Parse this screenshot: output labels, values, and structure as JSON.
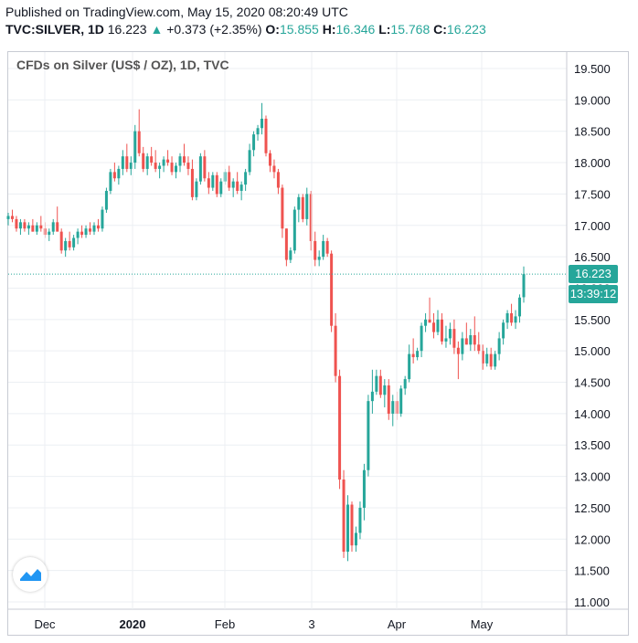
{
  "header": {
    "published": "Published on TradingView.com, May 15, 2020 08:20:49 UTC",
    "symbol": "TVC:SILVER, 1D",
    "last": "16.223",
    "change": "+0.373 (+2.35%)",
    "o_label": "O:",
    "o": "15.855",
    "h_label": "H:",
    "h": "16.346",
    "l_label": "L:",
    "l": "15.768",
    "c_label": "C:",
    "c": "16.223"
  },
  "colors": {
    "up": "#26a69a",
    "down": "#ef5350",
    "grid": "#eceff3",
    "axis_text": "#131722"
  },
  "price_tag": "16.223",
  "countdown_tag": "13:39:12",
  "chart_data": {
    "type": "candlestick",
    "title": "CFDs on Silver (US$ / OZ), 1D, TVC",
    "ylim": [
      11.0,
      19.5
    ],
    "yticks": [
      "19.500",
      "19.000",
      "18.500",
      "18.000",
      "17.500",
      "17.000",
      "16.500",
      "16.000",
      "15.500",
      "15.000",
      "14.500",
      "14.000",
      "13.500",
      "13.000",
      "12.500",
      "12.000",
      "11.500",
      "11.000"
    ],
    "xticks": [
      "Dec",
      "2020",
      "Feb",
      "3",
      "Apr",
      "May"
    ],
    "last_price": 16.223,
    "candles": [
      [
        17.1,
        17.2,
        17.0,
        17.15
      ],
      [
        17.15,
        17.25,
        17.05,
        17.1
      ],
      [
        17.1,
        17.15,
        16.9,
        16.95
      ],
      [
        16.95,
        17.1,
        16.85,
        17.05
      ],
      [
        17.05,
        17.1,
        16.9,
        16.95
      ],
      [
        16.95,
        17.05,
        16.85,
        17.0
      ],
      [
        17.0,
        17.1,
        16.9,
        16.9
      ],
      [
        16.9,
        17.05,
        16.85,
        17.0
      ],
      [
        17.0,
        17.15,
        16.9,
        16.95
      ],
      [
        16.95,
        17.05,
        16.8,
        16.85
      ],
      [
        16.85,
        16.95,
        16.75,
        16.9
      ],
      [
        16.9,
        17.1,
        16.85,
        17.05
      ],
      [
        17.05,
        17.3,
        16.95,
        16.9
      ],
      [
        16.9,
        16.95,
        16.55,
        16.6
      ],
      [
        16.6,
        16.8,
        16.5,
        16.75
      ],
      [
        16.75,
        16.9,
        16.6,
        16.65
      ],
      [
        16.65,
        16.85,
        16.6,
        16.8
      ],
      [
        16.8,
        16.95,
        16.7,
        16.9
      ],
      [
        16.9,
        17.0,
        16.8,
        16.85
      ],
      [
        16.85,
        17.0,
        16.8,
        16.95
      ],
      [
        16.95,
        17.05,
        16.85,
        16.9
      ],
      [
        16.9,
        17.05,
        16.85,
        17.0
      ],
      [
        17.0,
        17.1,
        16.9,
        16.95
      ],
      [
        16.95,
        17.3,
        16.9,
        17.25
      ],
      [
        17.25,
        17.6,
        17.2,
        17.55
      ],
      [
        17.55,
        17.9,
        17.5,
        17.85
      ],
      [
        17.85,
        18.0,
        17.7,
        17.75
      ],
      [
        17.75,
        17.95,
        17.65,
        17.9
      ],
      [
        17.9,
        18.2,
        17.8,
        18.1
      ],
      [
        18.1,
        18.3,
        17.85,
        17.9
      ],
      [
        17.9,
        18.1,
        17.8,
        18.0
      ],
      [
        18.0,
        18.6,
        17.9,
        18.5
      ],
      [
        18.5,
        18.85,
        18.1,
        18.15
      ],
      [
        18.15,
        18.25,
        17.85,
        17.9
      ],
      [
        17.9,
        18.15,
        17.8,
        18.1
      ],
      [
        18.1,
        18.25,
        17.95,
        18.0
      ],
      [
        18.0,
        18.2,
        17.85,
        17.9
      ],
      [
        17.9,
        18.0,
        17.75,
        17.95
      ],
      [
        17.95,
        18.1,
        17.85,
        18.05
      ],
      [
        18.05,
        18.2,
        17.95,
        18.0
      ],
      [
        18.0,
        18.1,
        17.8,
        17.85
      ],
      [
        17.85,
        18.0,
        17.75,
        17.95
      ],
      [
        17.95,
        18.15,
        17.85,
        18.1
      ],
      [
        18.1,
        18.3,
        17.95,
        18.0
      ],
      [
        18.0,
        18.1,
        17.8,
        17.9
      ],
      [
        17.9,
        18.05,
        17.4,
        17.45
      ],
      [
        17.45,
        17.75,
        17.4,
        17.7
      ],
      [
        17.7,
        18.15,
        17.65,
        18.1
      ],
      [
        18.1,
        18.2,
        17.7,
        17.75
      ],
      [
        17.75,
        17.85,
        17.5,
        17.6
      ],
      [
        17.6,
        17.85,
        17.55,
        17.8
      ],
      [
        17.8,
        17.85,
        17.45,
        17.5
      ],
      [
        17.5,
        17.75,
        17.45,
        17.7
      ],
      [
        17.7,
        17.9,
        17.65,
        17.85
      ],
      [
        17.85,
        17.95,
        17.55,
        17.6
      ],
      [
        17.6,
        17.75,
        17.45,
        17.7
      ],
      [
        17.7,
        17.85,
        17.5,
        17.55
      ],
      [
        17.55,
        17.7,
        17.4,
        17.65
      ],
      [
        17.65,
        17.9,
        17.55,
        17.85
      ],
      [
        17.85,
        18.3,
        17.8,
        18.2
      ],
      [
        18.2,
        18.5,
        18.1,
        18.45
      ],
      [
        18.45,
        18.6,
        18.35,
        18.55
      ],
      [
        18.55,
        18.95,
        18.45,
        18.7
      ],
      [
        18.7,
        18.75,
        18.1,
        18.15
      ],
      [
        18.15,
        18.2,
        17.85,
        17.95
      ],
      [
        17.95,
        18.05,
        17.75,
        17.85
      ],
      [
        17.85,
        17.9,
        17.5,
        17.6
      ],
      [
        17.6,
        17.65,
        16.8,
        16.95
      ],
      [
        16.95,
        16.95,
        16.35,
        16.45
      ],
      [
        16.45,
        16.65,
        16.4,
        16.6
      ],
      [
        16.6,
        17.3,
        16.55,
        17.25
      ],
      [
        17.25,
        17.5,
        17.05,
        17.45
      ],
      [
        17.45,
        17.5,
        17.05,
        17.1
      ],
      [
        17.1,
        17.6,
        17.0,
        17.5
      ],
      [
        17.5,
        17.55,
        16.6,
        16.75
      ],
      [
        16.75,
        16.9,
        16.35,
        16.45
      ],
      [
        16.45,
        16.6,
        16.35,
        16.5
      ],
      [
        16.5,
        16.85,
        16.45,
        16.75
      ],
      [
        16.75,
        16.8,
        16.5,
        16.55
      ],
      [
        16.55,
        16.6,
        15.3,
        15.4
      ],
      [
        15.4,
        15.6,
        14.5,
        14.6
      ],
      [
        14.6,
        14.7,
        12.8,
        12.95
      ],
      [
        12.95,
        13.1,
        11.7,
        11.8
      ],
      [
        11.8,
        12.7,
        11.65,
        12.55
      ],
      [
        12.55,
        12.6,
        11.8,
        11.9
      ],
      [
        11.9,
        12.2,
        11.8,
        12.1
      ],
      [
        12.1,
        12.6,
        12.0,
        12.5
      ],
      [
        12.5,
        13.2,
        12.3,
        13.1
      ],
      [
        13.1,
        14.3,
        13.0,
        14.2
      ],
      [
        14.2,
        14.7,
        14.0,
        14.35
      ],
      [
        14.35,
        14.7,
        14.3,
        14.6
      ],
      [
        14.6,
        14.7,
        14.25,
        14.3
      ],
      [
        14.3,
        14.55,
        14.1,
        14.45
      ],
      [
        14.45,
        14.55,
        13.9,
        14.0
      ],
      [
        14.0,
        14.3,
        13.8,
        14.2
      ],
      [
        14.2,
        14.35,
        13.9,
        14.0
      ],
      [
        14.0,
        14.45,
        13.95,
        14.4
      ],
      [
        14.4,
        14.6,
        14.3,
        14.55
      ],
      [
        14.55,
        15.1,
        14.5,
        14.95
      ],
      [
        14.95,
        15.2,
        14.8,
        14.9
      ],
      [
        14.9,
        15.05,
        14.85,
        15.0
      ],
      [
        15.0,
        15.45,
        14.9,
        15.4
      ],
      [
        15.4,
        15.6,
        15.3,
        15.5
      ],
      [
        15.5,
        15.85,
        15.45,
        15.45
      ],
      [
        15.45,
        15.6,
        15.2,
        15.3
      ],
      [
        15.3,
        15.65,
        15.25,
        15.5
      ],
      [
        15.5,
        15.6,
        15.1,
        15.15
      ],
      [
        15.15,
        15.4,
        15.05,
        15.2
      ],
      [
        15.2,
        15.45,
        15.1,
        15.35
      ],
      [
        15.35,
        15.5,
        14.95,
        15.05
      ],
      [
        15.05,
        15.15,
        14.55,
        14.95
      ],
      [
        14.95,
        15.3,
        14.85,
        15.2
      ],
      [
        15.2,
        15.45,
        15.1,
        15.1
      ],
      [
        15.1,
        15.35,
        15.0,
        15.25
      ],
      [
        15.25,
        15.55,
        15.0,
        15.1
      ],
      [
        15.1,
        15.3,
        14.95,
        15.0
      ],
      [
        15.0,
        15.1,
        14.7,
        14.8
      ],
      [
        14.8,
        15.05,
        14.75,
        14.95
      ],
      [
        14.95,
        15.05,
        14.7,
        14.75
      ],
      [
        14.75,
        15.0,
        14.7,
        14.95
      ],
      [
        14.95,
        15.3,
        14.85,
        15.2
      ],
      [
        15.2,
        15.5,
        15.1,
        15.45
      ],
      [
        15.45,
        15.65,
        15.35,
        15.6
      ],
      [
        15.6,
        15.75,
        15.4,
        15.45
      ],
      [
        15.45,
        15.65,
        15.35,
        15.55
      ],
      [
        15.55,
        15.9,
        15.45,
        15.85
      ],
      [
        15.855,
        16.346,
        15.768,
        16.223
      ]
    ]
  }
}
